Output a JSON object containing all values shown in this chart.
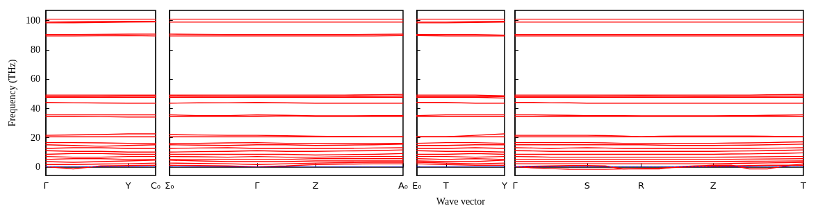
{
  "chart_data": [
    {
      "type": "line",
      "ylabel": "Frequency (THz)",
      "categories": [
        "Γ",
        null,
        null,
        "Y",
        "C₀"
      ],
      "ylim": [
        -6,
        107
      ],
      "yticks": [
        0,
        20,
        40,
        60,
        80,
        100
      ],
      "ref_lines": [
        {
          "axis": "y",
          "value": 0,
          "color": "#0000ff",
          "line_style": "dotted"
        }
      ],
      "line_style": "solid",
      "series": [
        {
          "color": "#ff0000",
          "values": [
            101,
            101,
            101,
            101,
            101
          ]
        },
        {
          "color": "#ff0000",
          "values": [
            99,
            99.2,
            99.4,
            99.5,
            99.5
          ]
        },
        {
          "color": "#ff0000",
          "values": [
            98.5,
            98.6,
            98.8,
            99,
            99.2
          ]
        },
        {
          "color": "#ff0000",
          "values": [
            90.5,
            90.5,
            90.6,
            90.8,
            90.8
          ]
        },
        {
          "color": "#ff0000",
          "values": [
            89.5,
            89.5,
            89.6,
            89.8,
            89.5
          ]
        },
        {
          "color": "#ff0000",
          "values": [
            49,
            49,
            49,
            49,
            49
          ]
        },
        {
          "color": "#ff0000",
          "values": [
            48,
            48,
            48.2,
            48.5,
            48.5
          ]
        },
        {
          "color": "#ff0000",
          "values": [
            47.5,
            47.5,
            47.5,
            47.5,
            47.5
          ]
        },
        {
          "color": "#ff0000",
          "values": [
            44,
            43.8,
            43.6,
            43.5,
            43.5
          ]
        },
        {
          "color": "#ff0000",
          "values": [
            35.5,
            35.5,
            35.5,
            35.5,
            35.5
          ]
        },
        {
          "color": "#ff0000",
          "values": [
            34.5,
            34.5,
            34.3,
            34,
            34
          ]
        },
        {
          "color": "#ff0000",
          "values": [
            21.5,
            21.8,
            22,
            22.5,
            22.5
          ]
        },
        {
          "color": "#ff0000",
          "values": [
            20.5,
            20.5,
            20.5,
            20.5,
            20.5
          ]
        },
        {
          "color": "#ff0000",
          "values": [
            16.5,
            16.5,
            16.3,
            16,
            16
          ]
        },
        {
          "color": "#ff0000",
          "values": [
            15,
            14.5,
            14,
            14.5,
            15
          ]
        },
        {
          "color": "#ff0000",
          "values": [
            12.5,
            13,
            13,
            12.5,
            12.5
          ]
        },
        {
          "color": "#ff0000",
          "values": [
            11,
            10.5,
            10.5,
            10,
            10
          ]
        },
        {
          "color": "#ff0000",
          "values": [
            8.5,
            9,
            9,
            8.5,
            8.5
          ]
        },
        {
          "color": "#ff0000",
          "values": [
            7,
            6.5,
            6.5,
            7,
            7
          ]
        },
        {
          "color": "#ff0000",
          "values": [
            5,
            5.5,
            5.5,
            5,
            5
          ]
        },
        {
          "color": "#ff0000",
          "values": [
            3.5,
            3,
            3.5,
            4,
            4.5
          ]
        },
        {
          "color": "#ff0000",
          "values": [
            1.5,
            1.5,
            1.8,
            2,
            2.5
          ]
        },
        {
          "color": "#ff0000",
          "values": [
            0,
            -1.5,
            0.5,
            0.8,
            1
          ]
        }
      ]
    },
    {
      "type": "line",
      "categories": [
        "Σ₀",
        null,
        null,
        "Γ",
        null,
        "Z",
        null,
        null,
        "A₀"
      ],
      "ylim": [
        -6,
        107
      ],
      "yticks": [
        0,
        20,
        40,
        60,
        80,
        100
      ],
      "tick_labels": "x",
      "ref_lines": [
        {
          "axis": "y",
          "value": 0,
          "color": "#0000ff",
          "line_style": "dotted"
        }
      ],
      "line_style": "solid",
      "series": [
        {
          "color": "#ff0000",
          "values": [
            101,
            101,
            101,
            101,
            101,
            101,
            101,
            101,
            101
          ]
        },
        {
          "color": "#ff0000",
          "values": [
            99,
            99,
            99,
            99,
            99,
            99,
            99,
            99,
            99
          ]
        },
        {
          "color": "#ff0000",
          "values": [
            90.8,
            90.6,
            90.5,
            90.5,
            90.5,
            90.5,
            90.5,
            90.6,
            90.8
          ]
        },
        {
          "color": "#ff0000",
          "values": [
            89.5,
            89.5,
            89.5,
            89.5,
            89.5,
            89.5,
            89.5,
            89.5,
            89.8
          ]
        },
        {
          "color": "#ff0000",
          "values": [
            49,
            49,
            49,
            49,
            49,
            49,
            49,
            49.2,
            49.5
          ]
        },
        {
          "color": "#ff0000",
          "values": [
            48.5,
            48.3,
            48.2,
            48,
            48,
            48,
            48.2,
            48.3,
            48.5
          ]
        },
        {
          "color": "#ff0000",
          "values": [
            47.5,
            47.5,
            47.5,
            47.5,
            47.5,
            47.5,
            47.5,
            47.5,
            47.5
          ]
        },
        {
          "color": "#ff0000",
          "values": [
            43.5,
            43.7,
            43.8,
            44,
            43.7,
            43.5,
            43.5,
            43.5,
            43.5
          ]
        },
        {
          "color": "#ff0000",
          "values": [
            35.5,
            35,
            35,
            35.5,
            35.2,
            34.8,
            34.8,
            35,
            35
          ]
        },
        {
          "color": "#ff0000",
          "values": [
            34.5,
            34.5,
            34.5,
            34.5,
            34.8,
            34.5,
            34.5,
            34.5,
            34.5
          ]
        },
        {
          "color": "#ff0000",
          "values": [
            22,
            21.7,
            21.5,
            21.5,
            21.2,
            20.8,
            20.6,
            20.5,
            20.5
          ]
        },
        {
          "color": "#ff0000",
          "values": [
            20.5,
            20.5,
            20.5,
            20.5,
            20.5,
            20.5,
            20.5,
            20.5,
            20.5
          ]
        },
        {
          "color": "#ff0000",
          "values": [
            16,
            16,
            16.3,
            16.5,
            16,
            16,
            16,
            16,
            16
          ]
        },
        {
          "color": "#ff0000",
          "values": [
            15,
            14.8,
            14.5,
            15,
            15,
            14.5,
            14.8,
            15,
            15.5
          ]
        },
        {
          "color": "#ff0000",
          "values": [
            12.5,
            12.8,
            13,
            12.5,
            12.5,
            12.5,
            12.5,
            12.8,
            13
          ]
        },
        {
          "color": "#ff0000",
          "values": [
            10,
            10.3,
            10.5,
            11,
            10.5,
            10.5,
            10.8,
            11,
            11.5
          ]
        },
        {
          "color": "#ff0000",
          "values": [
            8.5,
            8.5,
            8.5,
            8.5,
            8.5,
            8,
            8.3,
            8.5,
            9
          ]
        },
        {
          "color": "#ff0000",
          "values": [
            7,
            6.8,
            6.5,
            7,
            6.5,
            6.5,
            6.8,
            7,
            7
          ]
        },
        {
          "color": "#ff0000",
          "values": [
            5,
            5,
            5,
            5,
            5,
            5.5,
            5.5,
            5.5,
            5.5
          ]
        },
        {
          "color": "#ff0000",
          "values": [
            4.5,
            4,
            3.5,
            3.5,
            3.5,
            4,
            4,
            4,
            4
          ]
        },
        {
          "color": "#ff0000",
          "values": [
            2.5,
            2.2,
            2,
            1.5,
            2,
            2.5,
            2.8,
            3,
            3
          ]
        },
        {
          "color": "#ff0000",
          "values": [
            1,
            0.8,
            0.5,
            0,
            0.5,
            1.5,
            1.8,
            2,
            2
          ]
        }
      ]
    },
    {
      "type": "line",
      "xlabel": "Wave vector",
      "categories": [
        "E₀",
        "T",
        null,
        "Y"
      ],
      "ylim": [
        -6,
        107
      ],
      "yticks": [
        0,
        20,
        40,
        60,
        80,
        100
      ],
      "tick_labels": "x",
      "ref_lines": [
        {
          "axis": "y",
          "value": 0,
          "color": "#0000ff",
          "line_style": "dotted"
        }
      ],
      "line_style": "solid",
      "series": [
        {
          "color": "#ff0000",
          "values": [
            101,
            101,
            101,
            101
          ]
        },
        {
          "color": "#ff0000",
          "values": [
            99,
            99,
            99.3,
            99.5
          ]
        },
        {
          "color": "#ff0000",
          "values": [
            98.5,
            98.5,
            98.8,
            99
          ]
        },
        {
          "color": "#ff0000",
          "values": [
            90.5,
            90.5,
            90.5,
            90
          ]
        },
        {
          "color": "#ff0000",
          "values": [
            89.8,
            89.5,
            89.5,
            89.5
          ]
        },
        {
          "color": "#ff0000",
          "values": [
            49,
            49,
            49,
            48.5
          ]
        },
        {
          "color": "#ff0000",
          "values": [
            48,
            48,
            48,
            48
          ]
        },
        {
          "color": "#ff0000",
          "values": [
            47.5,
            47.5,
            47.5,
            47
          ]
        },
        {
          "color": "#ff0000",
          "values": [
            44,
            44,
            43.5,
            43.5
          ]
        },
        {
          "color": "#ff0000",
          "values": [
            35,
            35.5,
            35.5,
            35.5
          ]
        },
        {
          "color": "#ff0000",
          "values": [
            34.5,
            34.5,
            34.5,
            34.5
          ]
        },
        {
          "color": "#ff0000",
          "values": [
            20.5,
            20.5,
            21.5,
            22.5
          ]
        },
        {
          "color": "#ff0000",
          "values": [
            20.5,
            20.5,
            20.5,
            20.5
          ]
        },
        {
          "color": "#ff0000",
          "values": [
            16,
            16.5,
            16.5,
            16
          ]
        },
        {
          "color": "#ff0000",
          "values": [
            14.5,
            14.5,
            15,
            15
          ]
        },
        {
          "color": "#ff0000",
          "values": [
            12.5,
            12.5,
            13,
            12.5
          ]
        },
        {
          "color": "#ff0000",
          "values": [
            11,
            10.5,
            10.5,
            10
          ]
        },
        {
          "color": "#ff0000",
          "values": [
            8.5,
            8.5,
            9,
            8.5
          ]
        },
        {
          "color": "#ff0000",
          "values": [
            7,
            7,
            6.5,
            7
          ]
        },
        {
          "color": "#ff0000",
          "values": [
            5.5,
            5,
            5.5,
            5
          ]
        },
        {
          "color": "#ff0000",
          "values": [
            4,
            3.5,
            3.5,
            4.5
          ]
        },
        {
          "color": "#ff0000",
          "values": [
            3,
            2.5,
            2,
            2.5
          ]
        },
        {
          "color": "#ff0000",
          "values": [
            2,
            1.5,
            1,
            1
          ]
        }
      ]
    },
    {
      "type": "line",
      "categories": [
        "Γ",
        null,
        null,
        null,
        "S",
        null,
        null,
        "R",
        null,
        null,
        null,
        "Z",
        null,
        null,
        null,
        null,
        "T"
      ],
      "ylim": [
        -6,
        107
      ],
      "yticks": [
        0,
        20,
        40,
        60,
        80,
        100
      ],
      "tick_labels": "x",
      "ref_lines": [
        {
          "axis": "y",
          "value": 0,
          "color": "#0000ff",
          "line_style": "dotted"
        }
      ],
      "line_style": "solid",
      "series": [
        {
          "color": "#ff0000",
          "values": [
            101,
            101,
            101,
            101,
            101,
            101,
            101,
            101,
            101,
            101,
            101,
            101,
            101,
            101,
            101,
            101,
            101
          ]
        },
        {
          "color": "#ff0000",
          "values": [
            99,
            99,
            99,
            99,
            99,
            99,
            99,
            99,
            99,
            99,
            99,
            99,
            99,
            99,
            99,
            99,
            99
          ]
        },
        {
          "color": "#ff0000",
          "values": [
            90.5,
            90.5,
            90.5,
            90.5,
            90.5,
            90.5,
            90.5,
            90.5,
            90.5,
            90.5,
            90.5,
            90.5,
            90.5,
            90.5,
            90.5,
            90.5,
            90.5
          ]
        },
        {
          "color": "#ff0000",
          "values": [
            89.5,
            89.5,
            89.5,
            89.5,
            89.5,
            89.5,
            89.5,
            89.5,
            89.5,
            89.5,
            89.5,
            89.5,
            89.5,
            89.5,
            89.5,
            89.5,
            89.5
          ]
        },
        {
          "color": "#ff0000",
          "values": [
            49,
            49,
            49,
            49,
            49,
            49,
            49,
            49,
            49,
            49,
            49,
            49,
            49,
            49,
            49.2,
            49.3,
            49.5
          ]
        },
        {
          "color": "#ff0000",
          "values": [
            48,
            48,
            48,
            48,
            48,
            48.2,
            48.3,
            48.5,
            48.3,
            48.2,
            48,
            48,
            48.2,
            48.2,
            48.3,
            48.4,
            48.5
          ]
        },
        {
          "color": "#ff0000",
          "values": [
            47.5,
            47.5,
            47.5,
            47.5,
            47.5,
            47.5,
            47.5,
            47.5,
            47.5,
            47.5,
            47.5,
            47.5,
            47.5,
            47.5,
            47.5,
            47.5,
            47.5
          ]
        },
        {
          "color": "#ff0000",
          "values": [
            44,
            44,
            43.8,
            43.7,
            43.5,
            43.5,
            43.5,
            43.5,
            43.5,
            43.5,
            43.5,
            43.5,
            43.5,
            43.5,
            43.5,
            43.5,
            43.5
          ]
        },
        {
          "color": "#ff0000",
          "values": [
            35.5,
            35.5,
            35.3,
            35.2,
            35,
            35,
            35,
            34.8,
            34.8,
            34.8,
            34.8,
            34.8,
            35,
            35,
            35.2,
            35.3,
            35.5
          ]
        },
        {
          "color": "#ff0000",
          "values": [
            34.5,
            34.5,
            34.5,
            34.5,
            34.5,
            34.5,
            34.5,
            34.5,
            34.5,
            34.5,
            34.5,
            34.5,
            34.5,
            34.5,
            34.5,
            34.5,
            34.5
          ]
        },
        {
          "color": "#ff0000",
          "values": [
            21.5,
            21.5,
            21.5,
            21.5,
            21.5,
            21.3,
            21,
            20.5,
            20.8,
            21,
            21,
            21,
            21,
            21,
            20.8,
            20.6,
            20.5
          ]
        },
        {
          "color": "#ff0000",
          "values": [
            20.5,
            20.5,
            20.5,
            20.5,
            20.5,
            20.5,
            20.5,
            20.5,
            20.5,
            20.5,
            20.5,
            20.5,
            20.5,
            20.5,
            20.5,
            20.5,
            20.5
          ]
        },
        {
          "color": "#ff0000",
          "values": [
            16.5,
            16.5,
            16.5,
            16.5,
            16.5,
            16.3,
            16,
            16,
            16,
            16,
            16,
            16,
            16.2,
            16.3,
            16.5,
            16.8,
            17
          ]
        },
        {
          "color": "#ff0000",
          "values": [
            15,
            15,
            15,
            15,
            15,
            15,
            15,
            15,
            14.8,
            14.5,
            14.5,
            14.5,
            14.7,
            14.8,
            15,
            15.2,
            15.5
          ]
        },
        {
          "color": "#ff0000",
          "values": [
            13,
            12.8,
            12.5,
            12.8,
            13,
            12.8,
            12.5,
            12.5,
            12.5,
            12.5,
            12.5,
            12.5,
            12.5,
            12.5,
            12.7,
            12.8,
            13
          ]
        },
        {
          "color": "#ff0000",
          "values": [
            11,
            10.8,
            10.5,
            10.5,
            10.5,
            10.5,
            10.5,
            10.5,
            10.5,
            10.5,
            10.5,
            10.5,
            10.7,
            10.8,
            11,
            11.2,
            11.5
          ]
        },
        {
          "color": "#ff0000",
          "values": [
            8.5,
            8.5,
            8.5,
            8.5,
            8.5,
            8.5,
            8.5,
            8.5,
            8.5,
            8.5,
            8.5,
            8.5,
            8.7,
            8.8,
            9,
            9.2,
            9.5
          ]
        },
        {
          "color": "#ff0000",
          "values": [
            7,
            6.8,
            6.5,
            6.5,
            6.5,
            6.5,
            6.5,
            6.5,
            6.5,
            6.5,
            6.5,
            6.5,
            6.6,
            6.7,
            6.8,
            7,
            7
          ]
        },
        {
          "color": "#ff0000",
          "values": [
            5,
            5,
            5,
            5,
            5,
            5,
            5,
            5,
            5,
            5,
            5,
            5,
            5.1,
            5.2,
            5.3,
            5.4,
            5.5
          ]
        },
        {
          "color": "#ff0000",
          "values": [
            3.5,
            3.5,
            3.5,
            3.5,
            3.5,
            3.5,
            3.5,
            3.5,
            3.5,
            3.5,
            3.5,
            3.5,
            3.6,
            3.7,
            3.8,
            3.9,
            4
          ]
        },
        {
          "color": "#ff0000",
          "values": [
            2,
            2,
            2,
            2,
            2,
            2,
            2,
            2,
            2,
            2,
            2,
            2,
            2.2,
            2.4,
            2.6,
            2.8,
            3
          ]
        },
        {
          "color": "#ff0000",
          "values": [
            0,
            0.3,
            0.5,
            0.8,
            0.8,
            0.5,
            -1.5,
            -1.5,
            -1.5,
            0,
            0.5,
            1,
            1,
            -1.5,
            -1.5,
            0.5,
            2
          ]
        },
        {
          "color": "#ff0000",
          "values": [
            0,
            -0.8,
            -1.3,
            -1.7,
            -1.8,
            -1.8,
            -1.5,
            -1.2,
            -1,
            -0.5,
            0,
            0.3,
            0.5,
            0.8,
            1,
            1,
            1
          ]
        }
      ]
    }
  ]
}
